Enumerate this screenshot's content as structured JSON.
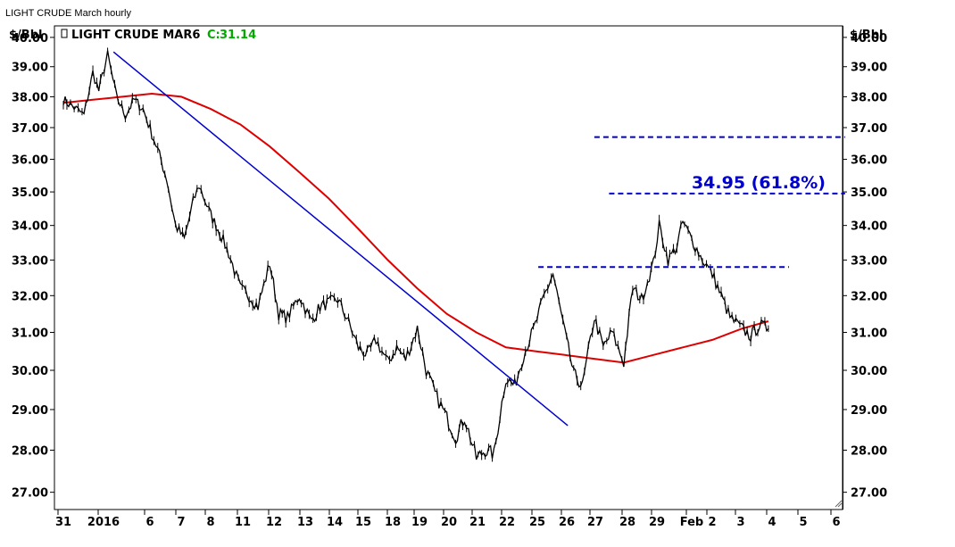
{
  "window": {
    "title": "LIGHT CRUDE March hourly"
  },
  "colors": {
    "price": "#000000",
    "ma": "#dd0000",
    "trend": "#0000cc",
    "annotation": "#0000cc",
    "close_value": "#00aa00",
    "grid": "#cccccc"
  },
  "chart_data": {
    "type": "line",
    "title": "",
    "legend": {
      "symbol": "LIGHT CRUDE MAR6",
      "close_label": "C:",
      "close_value": "31.14"
    },
    "ylabel_left": "$/Bbl",
    "ylabel_right": "$/Bbl",
    "ylim": [
      26.6,
      40.4
    ],
    "y_scale": "log",
    "y_ticks": [
      "27.00",
      "28.00",
      "29.00",
      "30.00",
      "31.00",
      "32.00",
      "33.00",
      "34.00",
      "35.00",
      "36.00",
      "37.00",
      "38.00",
      "39.00",
      "40.00"
    ],
    "x_ticks": [
      "31",
      "2016",
      "6",
      "7",
      "8",
      "11",
      "12",
      "13",
      "14",
      "15",
      "18",
      "19",
      "20",
      "21",
      "22",
      "25",
      "26",
      "27",
      "28",
      "29",
      "Feb",
      "2",
      "3",
      "4",
      "5",
      "6"
    ],
    "grid": false,
    "series": [
      {
        "kind": "price",
        "x": [
          0,
          0.3,
          0.7,
          1.0,
          1.2,
          1.5,
          1.8,
          2.1,
          2.4,
          2.7,
          3.0,
          3.2,
          3.5,
          3.8,
          4.1,
          4.4,
          4.6,
          5.0,
          5.3,
          5.6,
          6.0,
          6.3,
          6.6,
          7.0,
          7.3,
          7.6,
          8.0,
          8.4,
          8.7,
          9.0,
          9.3,
          9.6,
          10.0,
          10.3,
          10.6,
          11.0,
          11.3,
          11.6,
          12.0,
          12.3,
          12.6,
          13.0,
          13.3,
          13.6,
          14.0,
          14.3,
          14.6,
          15.0,
          15.3,
          15.6,
          16.0,
          16.3,
          16.6,
          17.0,
          17.3,
          17.6,
          18.0,
          18.3,
          18.6,
          19.0,
          19.3,
          19.6,
          20.0,
          20.2,
          20.5,
          20.8,
          21.0,
          21.3,
          21.6,
          22.0,
          22.3,
          22.6,
          23.0,
          23.3,
          23.6,
          23.9
        ],
        "y": [
          37.9,
          37.7,
          37.4,
          38.8,
          38.2,
          39.4,
          38.0,
          37.4,
          37.9,
          37.6,
          36.8,
          36.3,
          35.4,
          34.0,
          33.6,
          34.7,
          35.2,
          34.3,
          33.8,
          33.2,
          32.2,
          32.0,
          31.7,
          32.9,
          31.5,
          31.4,
          32.0,
          31.3,
          31.7,
          31.8,
          31.9,
          31.4,
          30.6,
          30.4,
          30.8,
          30.2,
          30.6,
          30.3,
          31.1,
          30.0,
          29.4,
          28.8,
          28.3,
          28.8,
          27.8,
          28.0,
          27.9,
          29.8,
          29.6,
          30.4,
          31.2,
          32.0,
          32.6,
          31.0,
          29.9,
          29.6,
          31.4,
          30.6,
          31.0,
          30.2,
          32.2,
          31.9,
          32.9,
          34.0,
          33.0,
          33.4,
          34.1,
          33.6,
          33.1,
          32.6,
          32.0,
          31.4,
          31.1,
          30.9,
          31.2,
          31.1
        ]
      },
      {
        "kind": "moving_average",
        "x": [
          0,
          1,
          2,
          3,
          4,
          5,
          6,
          7,
          8,
          9,
          10,
          11,
          12,
          13,
          14,
          15,
          16,
          17,
          18,
          19,
          20,
          21,
          22,
          23,
          23.9
        ],
        "y": [
          37.8,
          37.9,
          38.0,
          38.1,
          38.0,
          37.6,
          37.1,
          36.4,
          35.6,
          34.8,
          33.9,
          33.0,
          32.2,
          31.5,
          31.0,
          30.6,
          30.5,
          30.4,
          30.3,
          30.2,
          30.4,
          30.6,
          30.8,
          31.1,
          31.3
        ]
      }
    ],
    "lines": [
      {
        "kind": "trendline",
        "x": [
          1.7,
          17.1
        ],
        "y": [
          39.5,
          28.6
        ]
      },
      {
        "kind": "dashed",
        "x": [
          16.1,
          24.6
        ],
        "y": [
          32.8,
          32.8
        ]
      },
      {
        "kind": "dashed",
        "x": [
          18.5,
          26.5
        ],
        "y": [
          34.95,
          34.95
        ]
      },
      {
        "kind": "dashed",
        "x": [
          18.0,
          26.5
        ],
        "y": [
          36.7,
          36.7
        ]
      }
    ],
    "annotations": [
      {
        "text": "34.95 (61.8%)",
        "x": 21.3,
        "y": 34.95
      }
    ]
  }
}
